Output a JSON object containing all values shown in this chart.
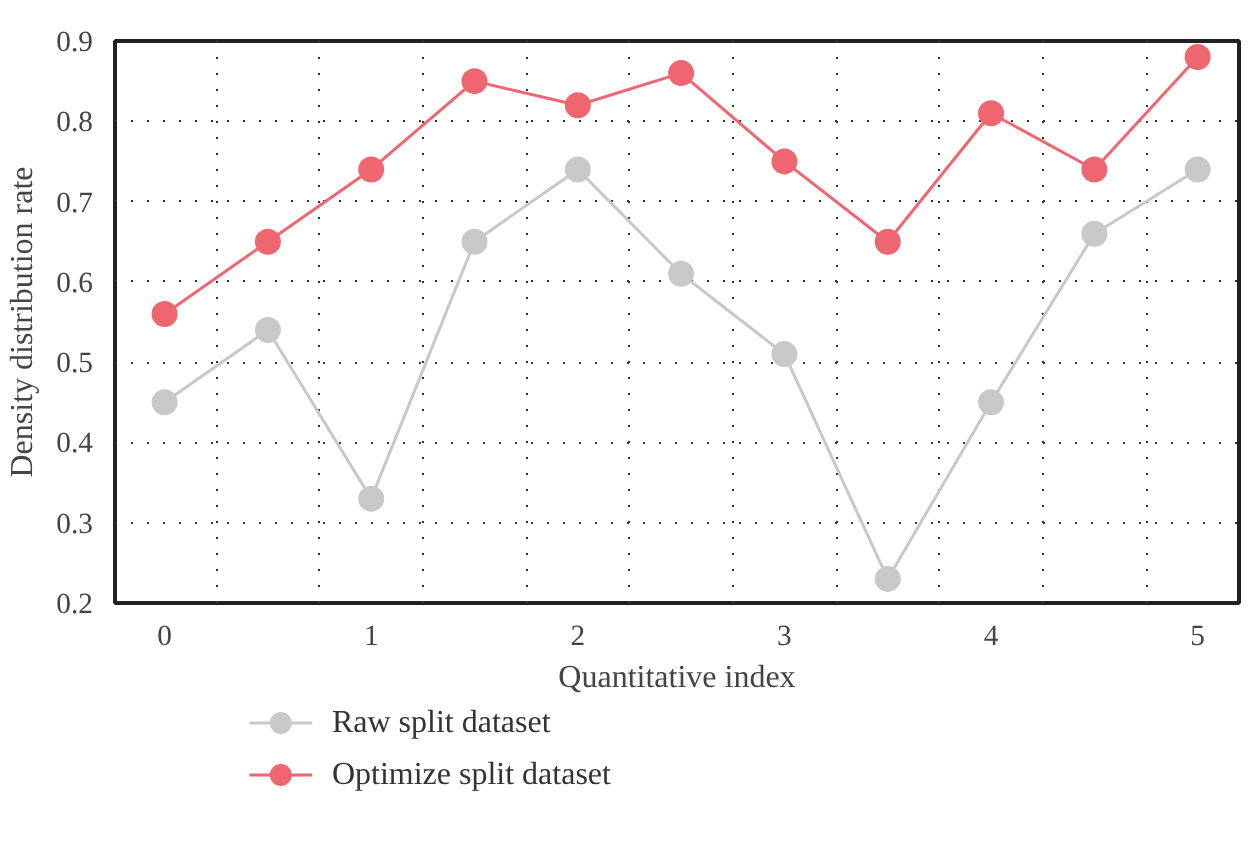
{
  "chart_data": {
    "type": "line",
    "xlabel": "Quantitative index",
    "ylabel": "Density distribution rate",
    "x": [
      0,
      0.5,
      1,
      1.5,
      2,
      2.5,
      3,
      3.5,
      4,
      4.5,
      5
    ],
    "series": [
      {
        "name": "Raw split dataset",
        "color": "#c8c8c8",
        "values": [
          0.45,
          0.54,
          0.33,
          0.65,
          0.74,
          0.61,
          0.51,
          0.23,
          0.45,
          0.66,
          0.74
        ]
      },
      {
        "name": "Optimize split dataset",
        "color": "#ef6670",
        "values": [
          0.56,
          0.65,
          0.74,
          0.85,
          0.82,
          0.86,
          0.75,
          0.65,
          0.81,
          0.74,
          0.88
        ]
      }
    ],
    "xlim": [
      -0.24,
      5.2
    ],
    "ylim": [
      0.2,
      0.9
    ],
    "xticks": [
      0,
      {
        "value": 0.25,
        "label": null
      },
      {
        "value": 0.75,
        "label": null
      },
      1,
      {
        "value": 1.25,
        "label": null
      },
      {
        "value": 1.75,
        "label": null
      },
      2,
      {
        "value": 2.25,
        "label": null
      },
      {
        "value": 2.75,
        "label": null
      },
      3,
      {
        "value": 3.25,
        "label": null
      },
      {
        "value": 3.75,
        "label": null
      },
      4,
      {
        "value": 4.25,
        "label": null
      },
      {
        "value": 4.75,
        "label": null
      },
      5
    ],
    "yticks": [
      0.2,
      0.3,
      0.4,
      0.5,
      0.6,
      0.7,
      0.8,
      0.9
    ],
    "grid": true,
    "legend": "bottom left",
    "marker": "circle",
    "line_style": "solid"
  }
}
